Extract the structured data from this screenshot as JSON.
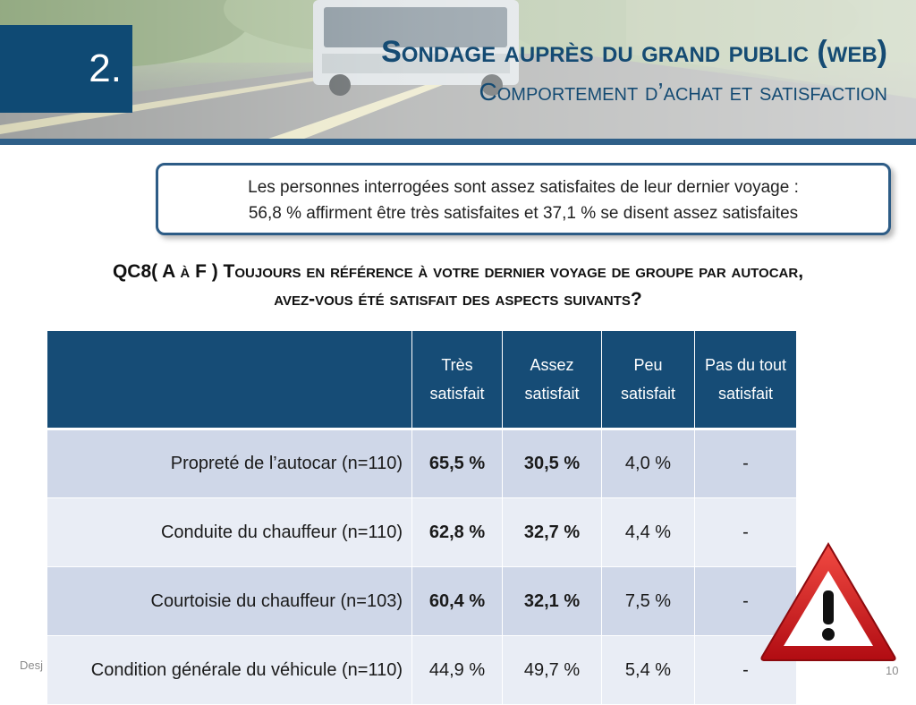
{
  "header": {
    "section_number": "2.",
    "title": "Sondage auprès du grand public (web)",
    "subtitle": "Comportement d’achat et satisfaction"
  },
  "callout": {
    "line1": "Les personnes interrogées sont assez satisfaites de leur dernier voyage :",
    "line2": "56,8 % affirment être très satisfaites et 37,1 % se disent assez satisfaites"
  },
  "question": {
    "line1": "QC8( A à F ) Toujours en référence à votre dernier voyage de groupe par autocar,",
    "line2": "avez-vous été satisfait des aspects suivants?"
  },
  "table": {
    "columns": [
      "",
      "Très satisfait",
      "Assez satisfait",
      "Peu satisfait",
      "Pas du tout satisfait"
    ],
    "rows": [
      {
        "label": "Propreté de l’autocar (n=110)",
        "tres": "65,5 %",
        "assez": "30,5 %",
        "peu": "4,0 %",
        "pas": "-"
      },
      {
        "label": "Conduite du chauffeur (n=110)",
        "tres": "62,8 %",
        "assez": "32,7 %",
        "peu": "4,4 %",
        "pas": "-"
      },
      {
        "label": "Courtoisie du chauffeur (n=103)",
        "tres": "60,4 %",
        "assez": "32,1 %",
        "peu": "7,5 %",
        "pas": "-"
      },
      {
        "label": "Condition générale du véhicule (n=110)",
        "tres": "44,9 %",
        "assez": "49,7 %",
        "peu": "5,4 %",
        "pas": "-"
      }
    ]
  },
  "footer": {
    "left": "Desj",
    "page_number": "10"
  },
  "icons": {
    "warning": "warning-triangle-icon"
  },
  "colors": {
    "primary": "#164c76",
    "row_odd": "#cfd7e8",
    "row_even": "#e9edf5",
    "warning_red": "#d8151b"
  }
}
